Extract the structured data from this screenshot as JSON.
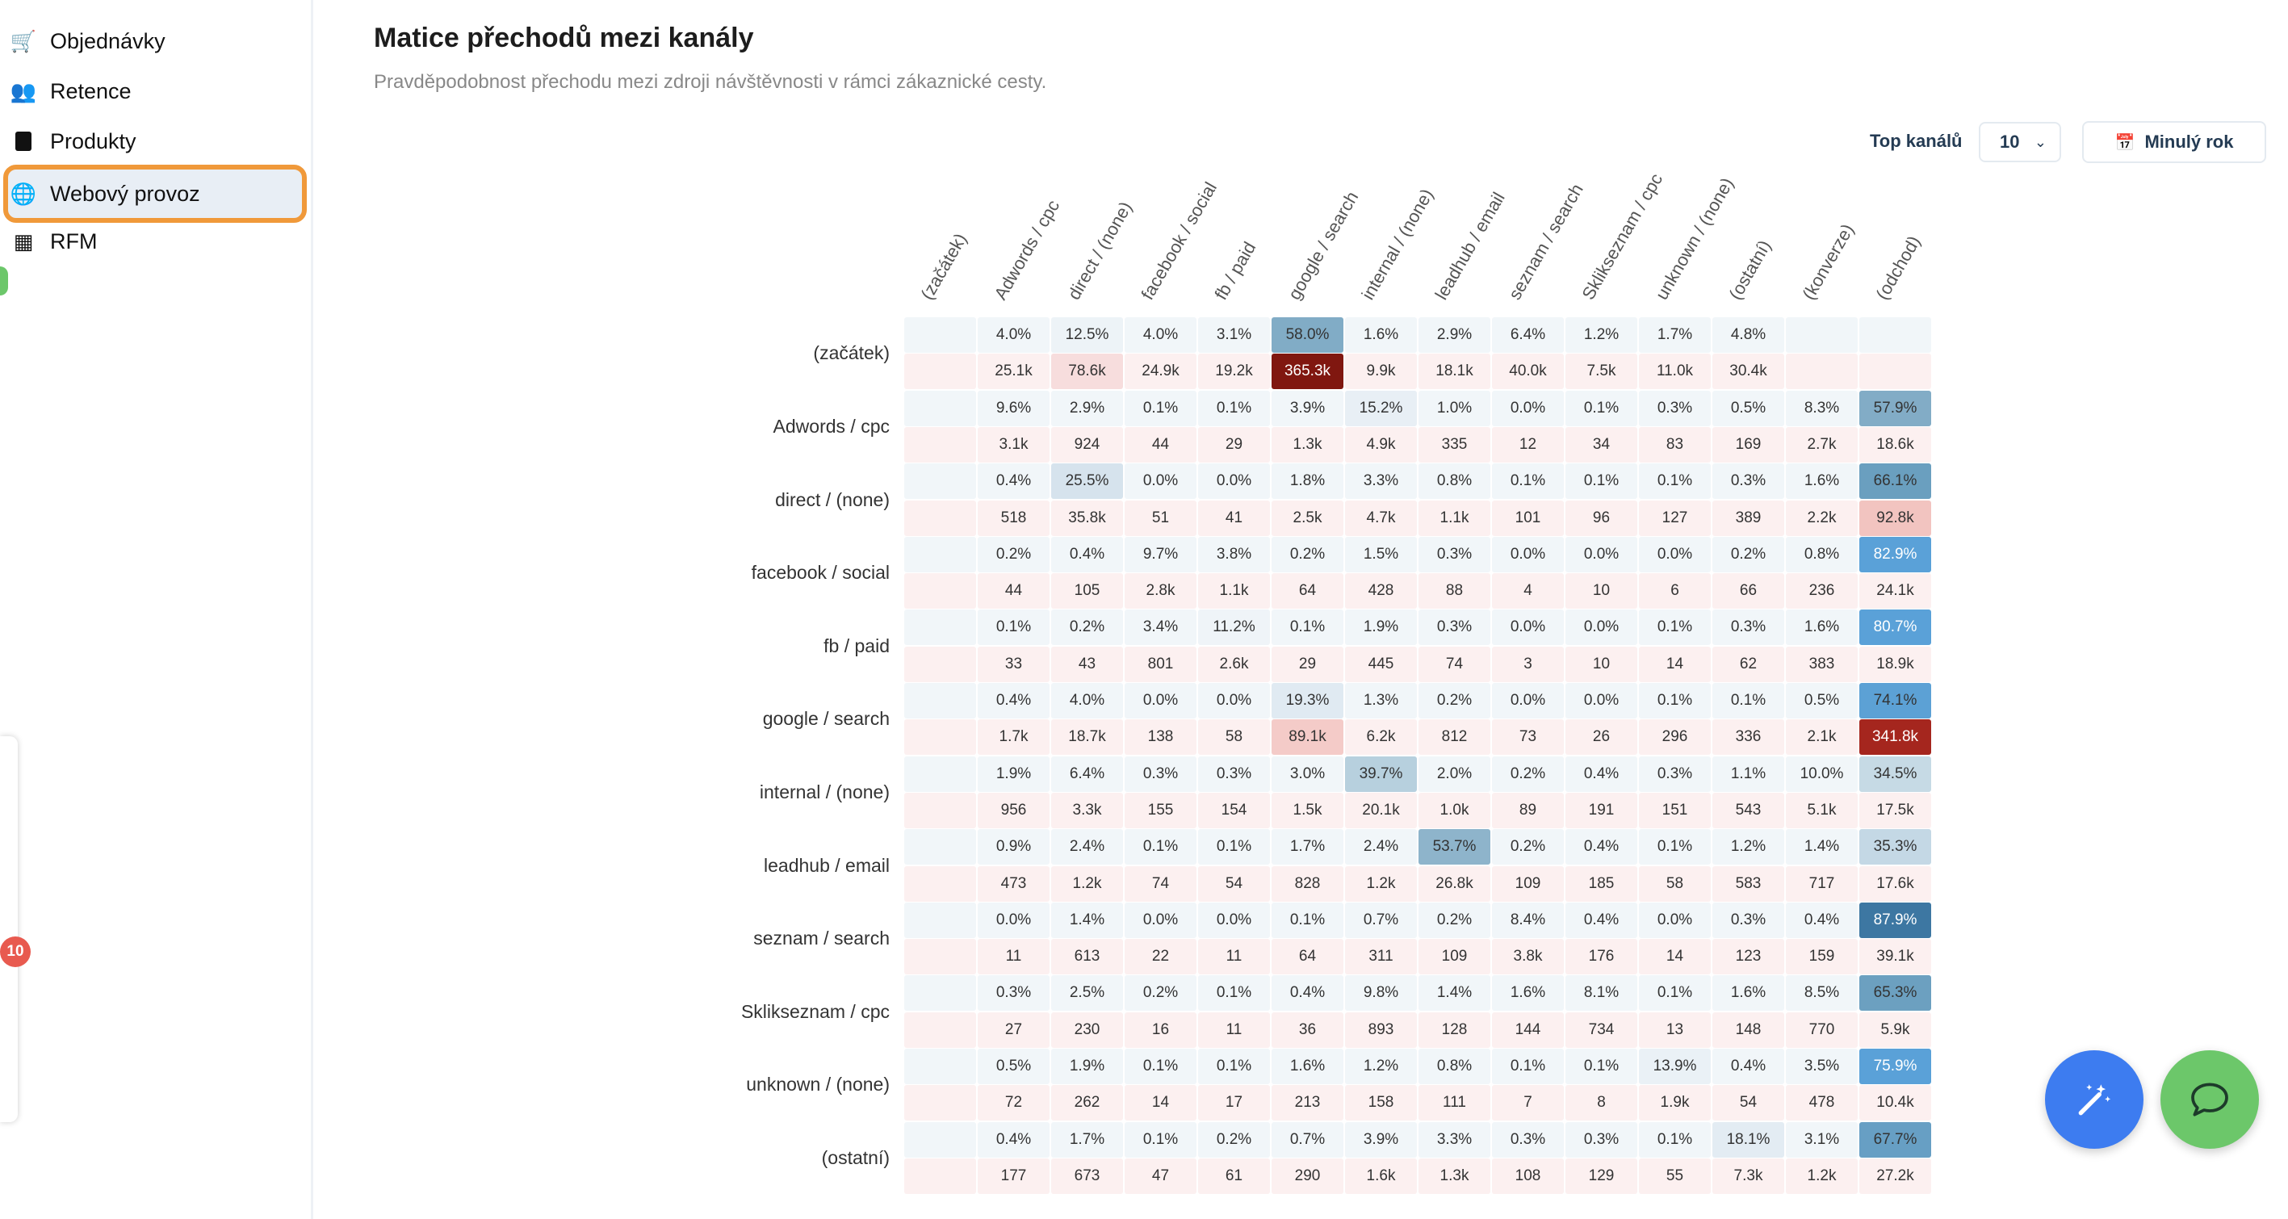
{
  "sidebar": {
    "items": [
      {
        "label": "Objednávky",
        "icon": "cart-icon"
      },
      {
        "label": "Retence",
        "icon": "users-icon"
      },
      {
        "label": "Produkty",
        "icon": "box-icon"
      },
      {
        "label": "Webový provoz",
        "icon": "globe-icon",
        "active": true
      },
      {
        "label": "RFM",
        "icon": "table-icon"
      }
    ],
    "badge": "10"
  },
  "header": {
    "title": "Matice přechodů mezi kanály",
    "subtitle": "Pravděpodobnost přechodu mezi zdroji návštěvnosti v rámci zákaznické cesty."
  },
  "controls": {
    "top_label": "Top kanálů",
    "top_value": "10",
    "period_label": "Minulý rok"
  },
  "colors": {
    "accent_orange": "#f0993a",
    "fab_blue": "#3d7cf0",
    "fab_green": "#6cc76a"
  },
  "chart_data": {
    "type": "heatmap",
    "title": "Matice přechodů mezi kanály",
    "columns": [
      "(začátek)",
      "Adwords / cpc",
      "direct / (none)",
      "facebook / social",
      "fb / paid",
      "google / search",
      "internal / (none)",
      "leadhub / email",
      "seznam / search",
      "Sklikseznam / cpc",
      "unknown / (none)",
      "(ostatní)",
      "(konverze)",
      "(odchod)"
    ],
    "rows": [
      {
        "label": "(začátek)",
        "pct": [
          null,
          "4.0%",
          "12.5%",
          "4.0%",
          "3.1%",
          "58.0%",
          "1.6%",
          "2.9%",
          "6.4%",
          "1.2%",
          "1.7%",
          "4.8%",
          null,
          null
        ],
        "cnt": [
          null,
          "25.1k",
          "78.6k",
          "24.9k",
          "19.2k",
          "365.3k",
          "9.9k",
          "18.1k",
          "40.0k",
          "7.5k",
          "11.0k",
          "30.4k",
          null,
          null
        ]
      },
      {
        "label": "Adwords / cpc",
        "pct": [
          null,
          "9.6%",
          "2.9%",
          "0.1%",
          "0.1%",
          "3.9%",
          "15.2%",
          "1.0%",
          "0.0%",
          "0.1%",
          "0.3%",
          "0.5%",
          "8.3%",
          "57.9%"
        ],
        "cnt": [
          null,
          "3.1k",
          "924",
          "44",
          "29",
          "1.3k",
          "4.9k",
          "335",
          "12",
          "34",
          "83",
          "169",
          "2.7k",
          "18.6k"
        ]
      },
      {
        "label": "direct / (none)",
        "pct": [
          null,
          "0.4%",
          "25.5%",
          "0.0%",
          "0.0%",
          "1.8%",
          "3.3%",
          "0.8%",
          "0.1%",
          "0.1%",
          "0.1%",
          "0.3%",
          "1.6%",
          "66.1%"
        ],
        "cnt": [
          null,
          "518",
          "35.8k",
          "51",
          "41",
          "2.5k",
          "4.7k",
          "1.1k",
          "101",
          "96",
          "127",
          "389",
          "2.2k",
          "92.8k"
        ]
      },
      {
        "label": "facebook / social",
        "pct": [
          null,
          "0.2%",
          "0.4%",
          "9.7%",
          "3.8%",
          "0.2%",
          "1.5%",
          "0.3%",
          "0.0%",
          "0.0%",
          "0.0%",
          "0.2%",
          "0.8%",
          "82.9%"
        ],
        "cnt": [
          null,
          "44",
          "105",
          "2.8k",
          "1.1k",
          "64",
          "428",
          "88",
          "4",
          "10",
          "6",
          "66",
          "236",
          "24.1k"
        ]
      },
      {
        "label": "fb / paid",
        "pct": [
          null,
          "0.1%",
          "0.2%",
          "3.4%",
          "11.2%",
          "0.1%",
          "1.9%",
          "0.3%",
          "0.0%",
          "0.0%",
          "0.1%",
          "0.3%",
          "1.6%",
          "80.7%"
        ],
        "cnt": [
          null,
          "33",
          "43",
          "801",
          "2.6k",
          "29",
          "445",
          "74",
          "3",
          "10",
          "14",
          "62",
          "383",
          "18.9k"
        ]
      },
      {
        "label": "google / search",
        "pct": [
          null,
          "0.4%",
          "4.0%",
          "0.0%",
          "0.0%",
          "19.3%",
          "1.3%",
          "0.2%",
          "0.0%",
          "0.0%",
          "0.1%",
          "0.1%",
          "0.5%",
          "74.1%"
        ],
        "cnt": [
          null,
          "1.7k",
          "18.7k",
          "138",
          "58",
          "89.1k",
          "6.2k",
          "812",
          "73",
          "26",
          "296",
          "336",
          "2.1k",
          "341.8k"
        ]
      },
      {
        "label": "internal / (none)",
        "pct": [
          null,
          "1.9%",
          "6.4%",
          "0.3%",
          "0.3%",
          "3.0%",
          "39.7%",
          "2.0%",
          "0.2%",
          "0.4%",
          "0.3%",
          "1.1%",
          "10.0%",
          "34.5%"
        ],
        "cnt": [
          null,
          "956",
          "3.3k",
          "155",
          "154",
          "1.5k",
          "20.1k",
          "1.0k",
          "89",
          "191",
          "151",
          "543",
          "5.1k",
          "17.5k"
        ]
      },
      {
        "label": "leadhub / email",
        "pct": [
          null,
          "0.9%",
          "2.4%",
          "0.1%",
          "0.1%",
          "1.7%",
          "2.4%",
          "53.7%",
          "0.2%",
          "0.4%",
          "0.1%",
          "1.2%",
          "1.4%",
          "35.3%"
        ],
        "cnt": [
          null,
          "473",
          "1.2k",
          "74",
          "54",
          "828",
          "1.2k",
          "26.8k",
          "109",
          "185",
          "58",
          "583",
          "717",
          "17.6k"
        ]
      },
      {
        "label": "seznam / search",
        "pct": [
          null,
          "0.0%",
          "1.4%",
          "0.0%",
          "0.0%",
          "0.1%",
          "0.7%",
          "0.2%",
          "8.4%",
          "0.4%",
          "0.0%",
          "0.3%",
          "0.4%",
          "87.9%"
        ],
        "cnt": [
          null,
          "11",
          "613",
          "22",
          "11",
          "64",
          "311",
          "109",
          "3.8k",
          "176",
          "14",
          "123",
          "159",
          "39.1k"
        ]
      },
      {
        "label": "Sklikseznam / cpc",
        "pct": [
          null,
          "0.3%",
          "2.5%",
          "0.2%",
          "0.1%",
          "0.4%",
          "9.8%",
          "1.4%",
          "1.6%",
          "8.1%",
          "0.1%",
          "1.6%",
          "8.5%",
          "65.3%"
        ],
        "cnt": [
          null,
          "27",
          "230",
          "16",
          "11",
          "36",
          "893",
          "128",
          "144",
          "734",
          "13",
          "148",
          "770",
          "5.9k"
        ]
      },
      {
        "label": "unknown / (none)",
        "pct": [
          null,
          "0.5%",
          "1.9%",
          "0.1%",
          "0.1%",
          "1.6%",
          "1.2%",
          "0.8%",
          "0.1%",
          "0.1%",
          "13.9%",
          "0.4%",
          "3.5%",
          "75.9%"
        ],
        "cnt": [
          null,
          "72",
          "262",
          "14",
          "17",
          "213",
          "158",
          "111",
          "7",
          "8",
          "1.9k",
          "54",
          "478",
          "10.4k"
        ]
      },
      {
        "label": "(ostatní)",
        "pct": [
          null,
          "0.4%",
          "1.7%",
          "0.1%",
          "0.2%",
          "0.7%",
          "3.9%",
          "3.3%",
          "0.3%",
          "0.3%",
          "0.1%",
          "18.1%",
          "3.1%",
          "67.7%"
        ],
        "cnt": [
          null,
          "177",
          "673",
          "47",
          "61",
          "290",
          "1.6k",
          "1.3k",
          "108",
          "129",
          "55",
          "7.3k",
          "1.2k",
          "27.2k"
        ]
      }
    ]
  }
}
